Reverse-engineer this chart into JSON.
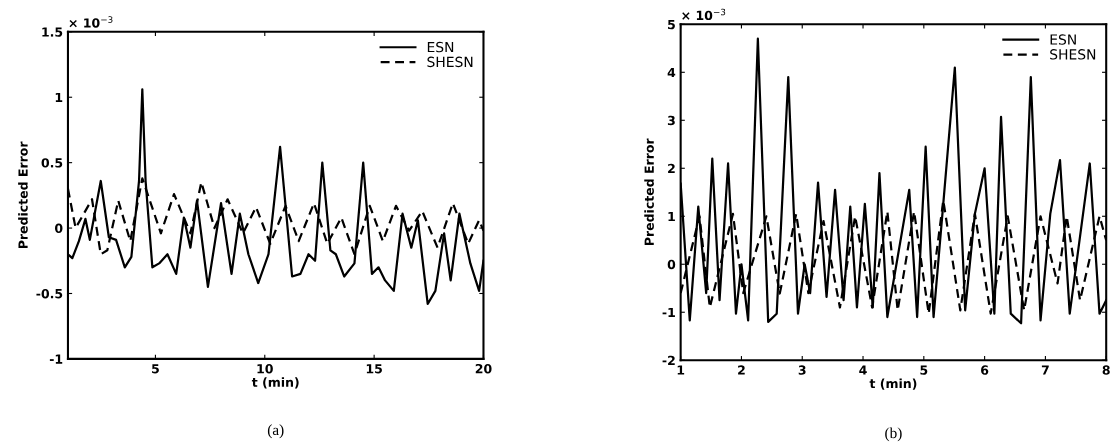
{
  "chart_data": [
    {
      "type": "line",
      "xlabel": "t (min)",
      "ylabel": "Predicted Error",
      "annotations": [
        "× 10$^{−3}$",
        "(a)"
      ],
      "xlim": [
        1,
        20
      ],
      "ylim": [
        -1,
        1.5
      ],
      "xticks": [
        5,
        10,
        15,
        20
      ],
      "yticks": [
        -1,
        -0.5,
        0,
        0.5,
        1,
        1.5
      ],
      "legend": "top right",
      "grid": false,
      "series": [
        {
          "name": "ESN",
          "color": "#000000",
          "line_style": "solid",
          "x": [
            1.0,
            1.2,
            1.5,
            1.8,
            2.0,
            2.5,
            2.87,
            3.2,
            3.6,
            3.9,
            4.25,
            4.4,
            4.55,
            4.86,
            5.17,
            5.55,
            5.95,
            6.3,
            6.6,
            6.9,
            7.4,
            8.0,
            8.48,
            8.86,
            9.25,
            9.7,
            10.17,
            10.7,
            11.25,
            11.63,
            12.0,
            12.3,
            12.63,
            13.0,
            13.25,
            13.63,
            14.1,
            14.5,
            14.9,
            15.2,
            15.5,
            15.9,
            16.3,
            16.7,
            17.0,
            17.45,
            17.8,
            18.2,
            18.5,
            18.9,
            19.4,
            19.8,
            20.0
          ],
          "values": [
            -0.2,
            -0.23,
            -0.1,
            0.07,
            -0.09,
            0.36,
            -0.07,
            -0.09,
            -0.3,
            -0.22,
            0.36,
            1.06,
            0.36,
            -0.3,
            -0.27,
            -0.2,
            -0.35,
            0.08,
            -0.15,
            0.21,
            -0.45,
            0.19,
            -0.35,
            0.11,
            -0.2,
            -0.42,
            -0.2,
            0.62,
            -0.37,
            -0.35,
            -0.2,
            -0.25,
            0.5,
            -0.17,
            -0.2,
            -0.37,
            -0.27,
            0.5,
            -0.35,
            -0.3,
            -0.4,
            -0.48,
            0.11,
            -0.15,
            0.06,
            -0.58,
            -0.48,
            -0.04,
            -0.4,
            0.11,
            -0.27,
            -0.48,
            -0.25
          ]
        },
        {
          "name": "SHESN",
          "color": "#000000",
          "line_style": "dashed",
          "x": [
            1.0,
            1.35,
            2.1,
            2.5,
            2.8,
            3.3,
            3.85,
            4.4,
            5.25,
            5.85,
            6.6,
            7.1,
            7.7,
            8.3,
            9.0,
            9.6,
            10.25,
            10.95,
            11.55,
            12.25,
            12.86,
            13.5,
            14.1,
            14.8,
            15.4,
            16.0,
            16.6,
            17.2,
            17.9,
            18.6,
            19.3,
            19.8,
            20.0
          ],
          "values": [
            0.3,
            0.0,
            0.22,
            -0.2,
            -0.17,
            0.21,
            -0.1,
            0.38,
            -0.04,
            0.26,
            -0.04,
            0.35,
            0.0,
            0.22,
            -0.04,
            0.16,
            -0.12,
            0.17,
            -0.1,
            0.19,
            -0.12,
            0.08,
            -0.2,
            0.17,
            -0.1,
            0.17,
            -0.02,
            0.13,
            -0.15,
            0.19,
            -0.12,
            0.06,
            -0.02
          ]
        }
      ]
    },
    {
      "type": "line",
      "xlabel": "t (min)",
      "ylabel": "Predicted Error",
      "annotations": [
        "× 10$^{−3}$",
        "(b)"
      ],
      "xlim": [
        1,
        8
      ],
      "ylim": [
        -2,
        5
      ],
      "xticks": [
        1,
        2,
        3,
        4,
        5,
        6,
        7,
        8
      ],
      "yticks": [
        -2,
        -1,
        0,
        1,
        2,
        3,
        4,
        5
      ],
      "legend": "top right",
      "grid": false,
      "series": [
        {
          "name": "ESN",
          "color": "#000000",
          "line_style": "solid",
          "x": [
            1.0,
            1.15,
            1.29,
            1.42,
            1.52,
            1.64,
            1.78,
            1.91,
            2.0,
            2.11,
            2.27,
            2.44,
            2.58,
            2.77,
            2.93,
            3.04,
            3.13,
            3.26,
            3.4,
            3.54,
            3.68,
            3.79,
            3.9,
            4.03,
            4.16,
            4.27,
            4.4,
            4.76,
            4.89,
            5.03,
            5.16,
            5.32,
            5.51,
            5.68,
            5.84,
            6.0,
            6.16,
            6.27,
            6.43,
            6.6,
            6.76,
            6.92,
            7.08,
            7.24,
            7.4,
            7.73,
            7.89,
            8.0
          ],
          "values": [
            1.68,
            -1.17,
            1.2,
            -0.6,
            2.2,
            -0.75,
            2.1,
            -1.03,
            0,
            -1.17,
            4.7,
            -1.2,
            -1.03,
            3.9,
            -1.03,
            0,
            -0.6,
            1.7,
            -0.68,
            1.55,
            -0.75,
            1.2,
            -0.9,
            1.26,
            -0.9,
            1.9,
            -1.1,
            1.55,
            -1.1,
            2.45,
            -1.1,
            1.26,
            4.1,
            -0.96,
            1.05,
            2.0,
            -1.03,
            3.07,
            -1.03,
            -1.23,
            3.9,
            -1.17,
            1.05,
            2.17,
            -1.03,
            2.1,
            -1.03,
            -0.75
          ]
        },
        {
          "name": "SHESN",
          "color": "#000000",
          "line_style": "dashed",
          "x": [
            1.0,
            1.31,
            1.48,
            1.86,
            2.03,
            2.41,
            2.63,
            2.9,
            3.1,
            3.35,
            3.62,
            3.87,
            4.15,
            4.4,
            4.57,
            4.84,
            5.08,
            5.32,
            5.6,
            5.84,
            6.1,
            6.38,
            6.65,
            6.92,
            7.2,
            7.35,
            7.57,
            7.89,
            8.0
          ],
          "values": [
            -0.6,
            1.0,
            -0.9,
            1.05,
            -0.6,
            1.0,
            -0.61,
            1.05,
            -0.6,
            0.9,
            -0.9,
            1.0,
            -0.9,
            1.1,
            -0.96,
            1.1,
            -1.03,
            1.33,
            -0.96,
            1.05,
            -1.03,
            1.0,
            -0.96,
            1.0,
            -0.4,
            1.0,
            -0.75,
            1.0,
            0.5
          ]
        }
      ]
    }
  ]
}
